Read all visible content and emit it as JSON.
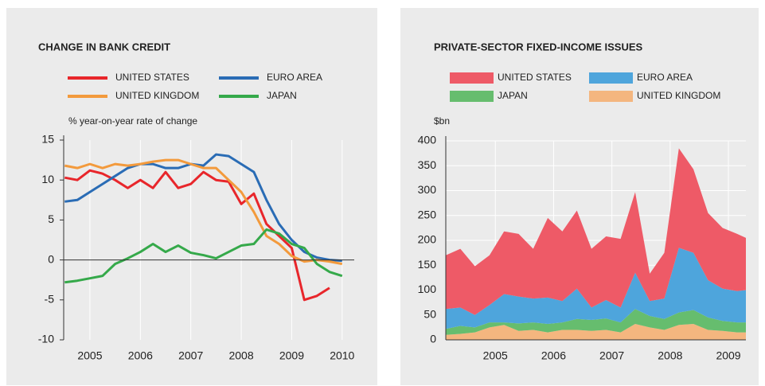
{
  "chart_data": [
    {
      "type": "line",
      "title": "CHANGE IN BANK CREDIT",
      "y_label": "% year-on-year rate of change",
      "x": [
        2004.5,
        2004.75,
        2005,
        2005.25,
        2005.5,
        2005.75,
        2006,
        2006.25,
        2006.5,
        2006.75,
        2007,
        2007.25,
        2007.5,
        2007.75,
        2008,
        2008.25,
        2008.5,
        2008.75,
        2009,
        2009.25,
        2009.5,
        2009.75,
        2010
      ],
      "series": [
        {
          "name": "UNITED STATES",
          "color": "#e8262b",
          "values": [
            10.3,
            10,
            11.2,
            10.8,
            10,
            9,
            10,
            9,
            11,
            9,
            9.5,
            11,
            10,
            9.8,
            7,
            8.3,
            4.5,
            3,
            1.5,
            -5,
            -4.5,
            -3.5,
            null
          ]
        },
        {
          "name": "EURO AREA",
          "color": "#2a6cb5",
          "values": [
            7.3,
            7.5,
            8.5,
            9.5,
            10.5,
            11.5,
            12,
            12,
            11.5,
            11.5,
            12,
            11.8,
            13.2,
            13,
            12,
            11,
            7.5,
            4.5,
            2.5,
            1,
            0.3,
            0,
            -0.1
          ]
        },
        {
          "name": "UNITED KINGDOM",
          "color": "#f39a3c",
          "values": [
            11.8,
            11.5,
            12,
            11.5,
            12,
            11.8,
            12,
            12.3,
            12.5,
            12.5,
            12,
            11.5,
            11.5,
            10,
            8.5,
            6,
            3,
            2,
            0.5,
            -0.2,
            0,
            -0.2,
            -0.5
          ]
        },
        {
          "name": "JAPAN",
          "color": "#35a94a",
          "values": [
            -2.8,
            -2.6,
            -2.3,
            -2,
            -0.5,
            0.2,
            1,
            2,
            1,
            1.8,
            0.9,
            0.6,
            0.2,
            1,
            1.8,
            2,
            3.8,
            3.3,
            2,
            1.5,
            -0.5,
            -1.5,
            -2
          ]
        }
      ],
      "xlim": [
        2004.48,
        2010.24
      ],
      "xticks": [
        2005,
        2006,
        2007,
        2008,
        2009,
        2010
      ],
      "ylim": [
        -10,
        15
      ],
      "yticks": [
        -10,
        -5,
        0,
        5,
        10,
        15
      ],
      "grid": false
    },
    {
      "type": "stacked-area",
      "title": "PRIVATE-SECTOR FIXED-INCOME ISSUES",
      "y_label": "$bn",
      "x": [
        2004.15,
        2004.4,
        2004.65,
        2004.9,
        2005.15,
        2005.4,
        2005.65,
        2005.9,
        2006.15,
        2006.4,
        2006.65,
        2006.9,
        2007.15,
        2007.4,
        2007.65,
        2007.9,
        2008.15,
        2008.4,
        2008.65,
        2008.9,
        2009.15,
        2009.3
      ],
      "series": [
        {
          "name": "UNITED STATES",
          "color": "#ee5a67",
          "values": [
            108,
            118,
            98,
            100,
            126,
            126,
            100,
            160,
            140,
            157,
            118,
            128,
            138,
            162,
            55,
            92,
            200,
            168,
            135,
            122,
            115,
            105
          ]
        },
        {
          "name": "EURO AREA",
          "color": "#4ea5dc",
          "values": [
            40,
            37,
            25,
            35,
            57,
            54,
            48,
            53,
            43,
            61,
            25,
            37,
            30,
            73,
            30,
            41,
            130,
            115,
            75,
            65,
            63,
            65
          ]
        },
        {
          "name": "JAPAN",
          "color": "#66bd6e",
          "values": [
            12,
            16,
            10,
            10,
            5,
            15,
            15,
            17,
            15,
            22,
            22,
            23,
            20,
            30,
            23,
            22,
            25,
            28,
            25,
            20,
            20,
            20
          ]
        },
        {
          "name": "UNITED KINGDOM",
          "color": "#f4b67f",
          "values": [
            10,
            12,
            15,
            25,
            30,
            18,
            20,
            15,
            20,
            20,
            18,
            20,
            15,
            32,
            25,
            20,
            30,
            32,
            20,
            18,
            15,
            15
          ]
        }
      ],
      "xlim": [
        2004.15,
        2009.3
      ],
      "xticks": [
        2005,
        2006,
        2007,
        2008,
        2009
      ],
      "ylim": [
        0,
        400
      ],
      "yticks": [
        0,
        50,
        100,
        150,
        200,
        250,
        300,
        350,
        400
      ],
      "grid": true
    }
  ]
}
